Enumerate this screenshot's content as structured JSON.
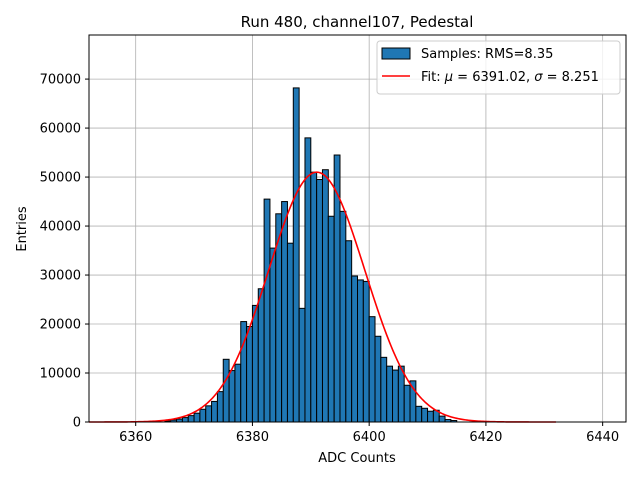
{
  "chart_data": {
    "type": "bar",
    "title": "Run 480, channel107, Pedestal",
    "xlabel": "ADC Counts",
    "ylabel": "Entries",
    "xlim": [
      6352,
      6444
    ],
    "ylim": [
      0,
      79000
    ],
    "xticks": [
      6360,
      6380,
      6400,
      6420,
      6440
    ],
    "yticks": [
      0,
      10000,
      20000,
      30000,
      40000,
      50000,
      60000,
      70000
    ],
    "grid": true,
    "legend": {
      "placement": "top-right",
      "entries": [
        {
          "type": "patch",
          "label": "Samples: RMS=8.35",
          "color": "#1f77b4"
        },
        {
          "type": "line",
          "label_prefix": "Fit: ",
          "mu_symbol": "μ",
          "mu_text": " = 6391.02, ",
          "sigma_symbol": "σ",
          "sigma_text": " = 8.251",
          "color": "#ff0000"
        }
      ]
    },
    "histogram": {
      "bin_width": 1,
      "bin_start": 6365,
      "values": [
        200,
        400,
        600,
        900,
        1300,
        1800,
        2600,
        3300,
        4200,
        6200,
        12800,
        10500,
        11800,
        20500,
        19500,
        23800,
        27200,
        45500,
        35500,
        42500,
        45000,
        36500,
        68200,
        23200,
        58000,
        51000,
        49500,
        51500,
        42000,
        54500,
        43000,
        37000,
        29800,
        29000,
        28700,
        21500,
        17500,
        13200,
        11400,
        10600,
        11400,
        7500,
        8400,
        3200,
        2800,
        2200,
        2400,
        1200,
        500,
        300
      ]
    },
    "fit": {
      "mu": 6391.02,
      "sigma": 8.251,
      "amplitude": 51000,
      "x_range": [
        6352,
        6432
      ]
    }
  }
}
